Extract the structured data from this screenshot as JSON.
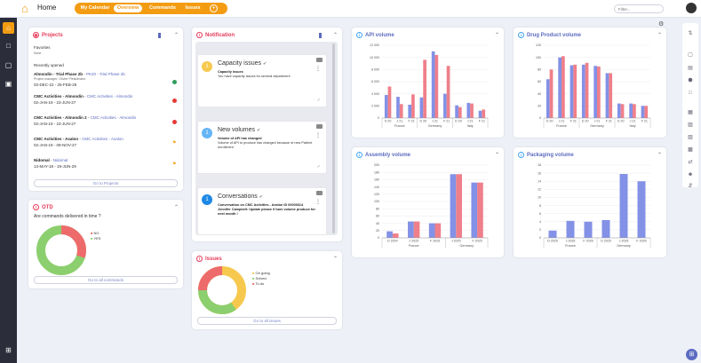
{
  "header": {
    "title": "Home",
    "tabs": [
      {
        "label": "My Calendar"
      },
      {
        "label": "Overview"
      },
      {
        "label": "Commands"
      },
      {
        "label": "Issues"
      }
    ],
    "filter_placeholder": "Filter..."
  },
  "colors": {
    "accent": "#f39c12",
    "primary": "#5c6bc0",
    "blue_bar": "#8391e6",
    "red_bar": "#ef7f8a",
    "green": "#8ccf6e",
    "yellow": "#f6c94e",
    "red": "#ee6b6b"
  },
  "projects": {
    "title": "Projects",
    "favorites_label": "Favorites",
    "favorites_none": "None",
    "recent_label": "Recently opened",
    "items": [
      {
        "name": "Almondin - Trial Phase 2b",
        "sep": " - ",
        "link": "PK20 - Trial Phase 2b",
        "extra": "Project manager: Olivier Pleisdmann",
        "dates": "02-DEC-22 - 25-FEB-25",
        "status": "green"
      },
      {
        "name": "CMC Activities - Almondin",
        "sep": " - ",
        "link": "CMC Activities - Almondin",
        "extra": "",
        "dates": "02-JAN-19 - 23-JUN-27",
        "status": "red"
      },
      {
        "name": "CMC Activities - Almondin 2",
        "sep": " - ",
        "link": "CMC Activities - Almondin",
        "extra": "",
        "dates": "02-JAN-19 - 23-JUN-27",
        "status": "red"
      },
      {
        "name": "CMC Activities - Axalon",
        "sep": " - ",
        "link": "CMC Activities - Axalon",
        "extra": "",
        "dates": "02-JAN-19 - 09-NOV-27",
        "status": "flag"
      },
      {
        "name": "Nidomal",
        "sep": " - ",
        "link": "Nidomal",
        "extra": "",
        "dates": "13-MAY-18 - 19-JUN-29",
        "status": "flag"
      }
    ],
    "button": "Go to Projects"
  },
  "otd": {
    "title": "OTD",
    "question": "Are commands delivered in time ?",
    "legend": [
      "NO",
      "YES"
    ],
    "values": [
      30,
      70
    ],
    "button": "Go to all commands"
  },
  "notification": {
    "title": "Notification",
    "items": [
      {
        "num": "1",
        "title": "Capacity issues",
        "msg_title": "Capacity issues",
        "msg": "You have capacity issues for several department",
        "color": "#f6c94e"
      },
      {
        "num": "1",
        "title": "New volumes",
        "msg_title": "Volume of API has changed",
        "msg": "Volume of API to produce has changed because of new Patient enrollment",
        "color": "#64b5f6"
      },
      {
        "num": "1",
        "title": "Conversations",
        "msg_title": "Conversation on CMC Activities - Axalon ID 00000314",
        "msg": "Jennifer Campbell: Update please if bare volume produce for next month !",
        "color": "#1e88e5"
      }
    ]
  },
  "issues": {
    "title": "Issues",
    "legend": [
      "On going",
      "Solved",
      "To do"
    ],
    "values": [
      40,
      35,
      25
    ],
    "button": "Go to all issues"
  },
  "charts": {
    "api": {
      "title": "API volume"
    },
    "drug": {
      "title": "Drug Product volume"
    },
    "assembly": {
      "title": "Assembly volume"
    },
    "packaging": {
      "title": "Packaging volume"
    }
  },
  "chart_data": [
    {
      "type": "bar",
      "title": "API volume",
      "ylim": [
        0,
        12000
      ],
      "yticks": [
        "0",
        "2 000",
        "4 000",
        "6 000",
        "8 000",
        "10 000",
        "12 000"
      ],
      "categories": [
        "D 20",
        "J 21",
        "F 21",
        "D 20",
        "J 21",
        "F 21",
        "D 20",
        "J 21",
        "F 21"
      ],
      "groups": [
        "France",
        "Germany",
        "Italy"
      ],
      "series": [
        {
          "values": [
            3800,
            3500,
            2200,
            3400,
            11000,
            4000,
            2100,
            2500,
            1200
          ]
        },
        {
          "values": [
            5200,
            2300,
            3900,
            9600,
            10400,
            8600,
            1800,
            2400,
            1400
          ]
        }
      ]
    },
    {
      "type": "bar",
      "title": "Drug Product volume",
      "ylim": [
        0,
        120
      ],
      "yticks": [
        "0",
        "20",
        "40",
        "60",
        "80",
        "100",
        "120"
      ],
      "categories": [
        "D 20",
        "J 21",
        "F 21",
        "D 20",
        "J 21",
        "F 21",
        "D 20",
        "J 21",
        "F 21"
      ],
      "groups": [
        "France",
        "Germany",
        "Italy"
      ],
      "series": [
        {
          "values": [
            64,
            100,
            87,
            88,
            86,
            74,
            24,
            24,
            20
          ]
        },
        {
          "values": [
            80,
            102,
            88,
            91,
            85,
            74,
            23,
            23,
            20
          ]
        }
      ]
    },
    {
      "type": "bar",
      "title": "Assembly volume",
      "ylim": [
        0,
        200
      ],
      "yticks": [
        "0",
        "20",
        "40",
        "60",
        "80",
        "100",
        "120",
        "140",
        "160",
        "180",
        "200"
      ],
      "categories": [
        "D 2024",
        "J 2025",
        "F 2025",
        "J 2025",
        "F 2025"
      ],
      "groups": [
        "France",
        "Germany"
      ],
      "series": [
        {
          "values": [
            18,
            45,
            40,
            175,
            152
          ]
        },
        {
          "values": [
            12,
            45,
            40,
            175,
            152
          ]
        }
      ]
    },
    {
      "type": "bar",
      "title": "Packaging volume",
      "ylim": [
        0,
        18
      ],
      "yticks": [
        "0",
        "2",
        "4",
        "6",
        "8",
        "10",
        "12",
        "14",
        "16",
        "18"
      ],
      "categories": [
        "D 2025",
        "J 2026",
        "F 2026",
        "D 2025",
        "J 2026",
        "F 2026"
      ],
      "groups": [
        "France",
        "Germany"
      ],
      "series": [
        {
          "values": [
            1.8,
            4.2,
            4,
            4.4,
            15.8,
            14
          ]
        }
      ]
    }
  ]
}
